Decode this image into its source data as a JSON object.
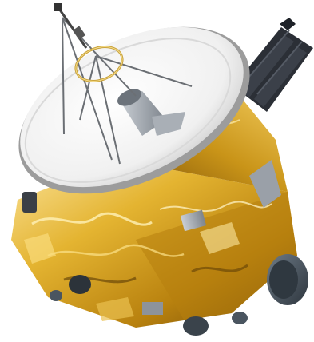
{
  "image": {
    "subject": "spacecraft-illustration",
    "background_color": "#ffffff",
    "colors": {
      "gold_light": "#f7d774",
      "gold_mid": "#d9a520",
      "gold_dark": "#8a5a08",
      "dish_white": "#f4f4f4",
      "dish_shadow": "#bfbfbf",
      "structure_gray": "#9a9fa6",
      "panel_dark": "#2b2f36",
      "thruster_slate": "#4a5560"
    }
  }
}
